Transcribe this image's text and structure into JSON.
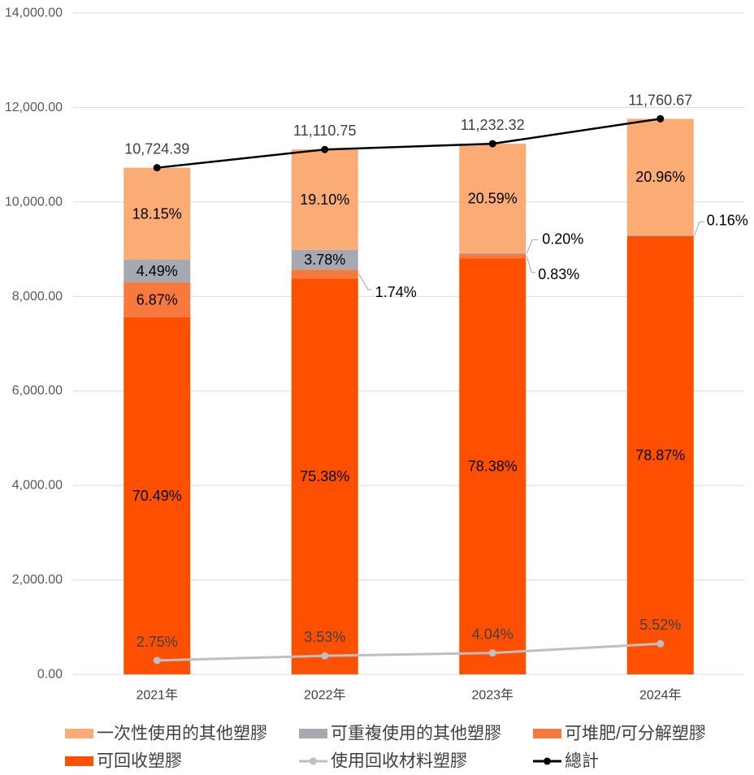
{
  "chart_data": {
    "type": "bar",
    "stacked": true,
    "categories": [
      "2021年",
      "2022年",
      "2023年",
      "2024年"
    ],
    "ylim": [
      0,
      14000
    ],
    "yticks": [
      0,
      2000,
      4000,
      6000,
      8000,
      10000,
      12000,
      14000
    ],
    "ytick_labels": [
      "0.00",
      "2,000.00",
      "4,000.00",
      "6,000.00",
      "8,000.00",
      "10,000.00",
      "12,000.00",
      "14,000.00"
    ],
    "grid": true,
    "legend_position": "bottom",
    "series": [
      {
        "name": "一次性使用的其他塑膠",
        "type": "bar",
        "color": "#FBAB74",
        "percent": [
          18.15,
          19.1,
          20.59,
          20.96
        ],
        "labels": [
          "18.15%",
          "19.10%",
          "20.59%",
          "20.96%"
        ]
      },
      {
        "name": "可重複使用的其他塑膠",
        "type": "bar",
        "color": "#A6A9B1",
        "percent": [
          4.49,
          3.78,
          0.2,
          0.16
        ],
        "labels": [
          "4.49%",
          "3.78%",
          "0.20%",
          "0.16%"
        ]
      },
      {
        "name": "可堆肥/可分解塑膠",
        "type": "bar",
        "color": "#F8793E",
        "percent": [
          6.87,
          1.74,
          0.83,
          null
        ],
        "labels": [
          "6.87%",
          "1.74%",
          "0.83%",
          null
        ]
      },
      {
        "name": "可回收塑膠",
        "type": "bar",
        "color": "#FE5000",
        "percent": [
          70.49,
          75.38,
          78.38,
          78.87
        ],
        "labels": [
          "70.49%",
          "75.38%",
          "78.38%",
          "78.87%"
        ]
      },
      {
        "name": "使用回收材料塑膠",
        "type": "line",
        "color": "#BDBFC4",
        "percent": [
          2.75,
          3.53,
          4.04,
          5.52
        ],
        "labels": [
          "2.75%",
          "3.53%",
          "4.04%",
          "5.52%"
        ]
      }
    ],
    "total": {
      "name": "總計",
      "type": "line",
      "color": "#000000",
      "values": [
        10724.39,
        11110.75,
        11232.32,
        11760.67
      ],
      "labels": [
        "10,724.39",
        "11,110.75",
        "11,232.32",
        "11,760.67"
      ]
    }
  }
}
